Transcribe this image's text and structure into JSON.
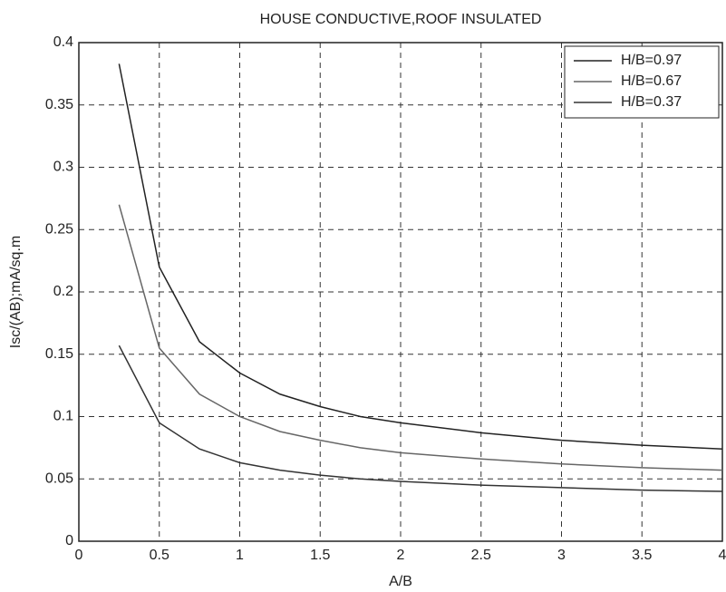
{
  "chart_data": {
    "type": "line",
    "title": "HOUSE CONDUCTIVE,ROOF INSULATED",
    "x_label": "A/B",
    "y_label": "Isc/(AB);mA/sq.m",
    "x": [
      0.25,
      0.5,
      0.75,
      1,
      1.25,
      1.5,
      1.75,
      2,
      2.5,
      3,
      3.5,
      4
    ],
    "series": [
      {
        "name": "H/B=0.97",
        "color": "#222222",
        "values": [
          0.383,
          0.22,
          0.16,
          0.135,
          0.118,
          0.108,
          0.1,
          0.095,
          0.087,
          0.081,
          0.077,
          0.074
        ]
      },
      {
        "name": "H/B=0.67",
        "color": "#666666",
        "values": [
          0.27,
          0.155,
          0.118,
          0.1,
          0.088,
          0.081,
          0.075,
          0.071,
          0.066,
          0.062,
          0.059,
          0.057
        ]
      },
      {
        "name": "H/B=0.37",
        "color": "#333333",
        "values": [
          0.157,
          0.095,
          0.074,
          0.063,
          0.057,
          0.053,
          0.05,
          0.048,
          0.045,
          0.043,
          0.041,
          0.04
        ]
      }
    ],
    "xlim": [
      0,
      4
    ],
    "xticks": [
      0,
      0.5,
      1,
      1.5,
      2,
      2.5,
      3,
      3.5,
      4
    ],
    "ylim": [
      0,
      0.4
    ],
    "yticks": [
      0,
      0.05,
      0.1,
      0.15,
      0.2,
      0.25,
      0.3,
      0.35,
      0.4
    ],
    "grid": true,
    "legend": "upper-right"
  }
}
